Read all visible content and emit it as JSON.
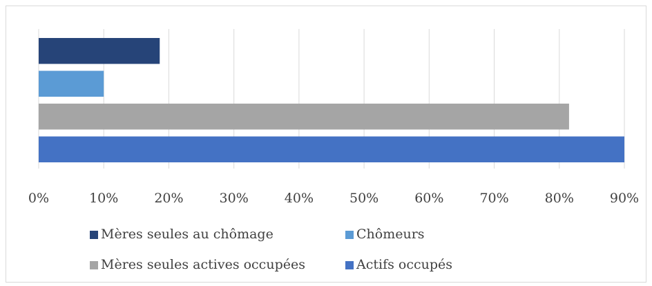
{
  "chart_data": {
    "type": "bar",
    "orientation": "horizontal",
    "categories": [
      null
    ],
    "series": [
      {
        "name": "Mères seules au chômage",
        "color": "#264478",
        "values": [
          18.6
        ]
      },
      {
        "name": "Chômeurs",
        "color": "#5b9bd5",
        "values": [
          10
        ]
      },
      {
        "name": "Mères seules actives occupées",
        "color": "#a5a5a5",
        "values": [
          81.5
        ]
      },
      {
        "name": "Actifs occupés",
        "color": "#4472c4",
        "values": [
          90
        ]
      }
    ],
    "xlim": [
      0,
      90
    ],
    "xticks": [
      {
        "value": 0,
        "label": "0%"
      },
      {
        "value": 10,
        "label": "10%"
      },
      {
        "value": 20,
        "label": "20%"
      },
      {
        "value": 30,
        "label": "30%"
      },
      {
        "value": 40,
        "label": "40%"
      },
      {
        "value": 50,
        "label": "50%"
      },
      {
        "value": 60,
        "label": "60%"
      },
      {
        "value": 70,
        "label": "70%"
      },
      {
        "value": 80,
        "label": "80%"
      },
      {
        "value": 90,
        "label": "90%"
      }
    ],
    "grid": true,
    "legend": "bottom"
  }
}
